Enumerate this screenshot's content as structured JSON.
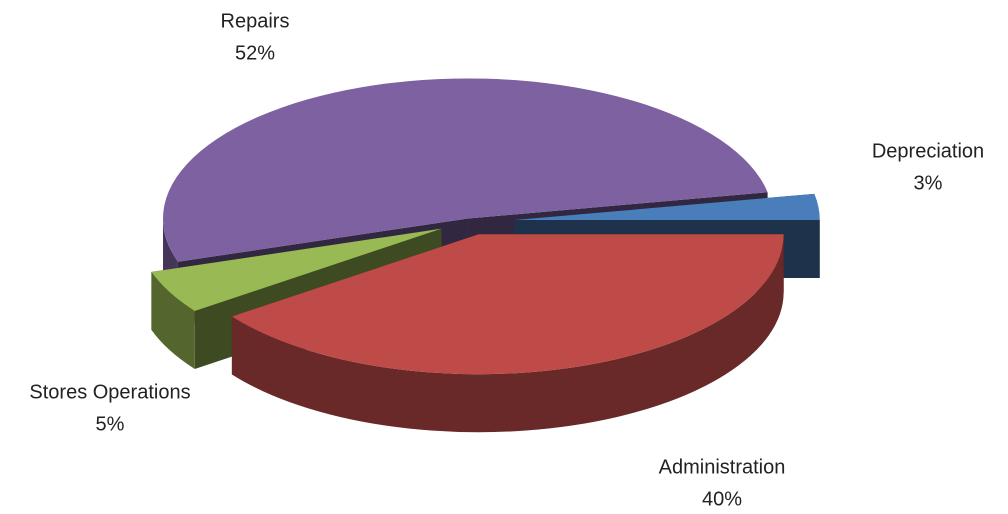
{
  "chart_data": {
    "type": "pie",
    "categories": [
      "Depreciation",
      "Administration",
      "Stores Operations",
      "Repairs"
    ],
    "values": [
      3,
      40,
      5,
      52
    ],
    "value_labels": [
      "3%",
      "40%",
      "5%",
      "52%"
    ],
    "colors": [
      "#4a7ebb",
      "#be4b48",
      "#98b954",
      "#7e61a0"
    ],
    "three_d": true,
    "exploded": true
  }
}
